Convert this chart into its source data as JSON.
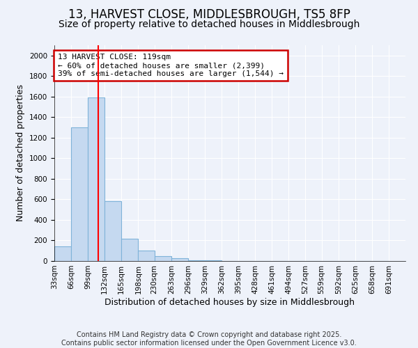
{
  "title": "13, HARVEST CLOSE, MIDDLESBROUGH, TS5 8FP",
  "subtitle": "Size of property relative to detached houses in Middlesbrough",
  "xlabel": "Distribution of detached houses by size in Middlesbrough",
  "ylabel": "Number of detached properties",
  "bin_labels": [
    "33sqm",
    "66sqm",
    "99sqm",
    "132sqm",
    "165sqm",
    "198sqm",
    "230sqm",
    "263sqm",
    "296sqm",
    "329sqm",
    "362sqm",
    "395sqm",
    "428sqm",
    "461sqm",
    "494sqm",
    "527sqm",
    "559sqm",
    "592sqm",
    "625sqm",
    "658sqm",
    "691sqm"
  ],
  "bin_left_edges": [
    33,
    66,
    99,
    132,
    165,
    198,
    230,
    263,
    296,
    329,
    362,
    395,
    428,
    461,
    494,
    527,
    559,
    592,
    625,
    658,
    691
  ],
  "bin_width": 33,
  "bar_heights": [
    140,
    1300,
    1590,
    580,
    215,
    100,
    50,
    25,
    10,
    5,
    2,
    1,
    1,
    0,
    0,
    0,
    0,
    0,
    0,
    0
  ],
  "bar_color": "#c5d9f0",
  "bar_edge_color": "#7fb3d9",
  "red_line_x": 119,
  "annotation_text": "13 HARVEST CLOSE: 119sqm\n← 60% of detached houses are smaller (2,399)\n39% of semi-detached houses are larger (1,544) →",
  "annotation_box_facecolor": "#ffffff",
  "annotation_box_edgecolor": "#cc0000",
  "ylim_max": 2100,
  "yticks": [
    0,
    200,
    400,
    600,
    800,
    1000,
    1200,
    1400,
    1600,
    1800,
    2000
  ],
  "footer_line1": "Contains HM Land Registry data © Crown copyright and database right 2025.",
  "footer_line2": "Contains public sector information licensed under the Open Government Licence v3.0.",
  "bg_color": "#eef2fa",
  "grid_color": "#ffffff",
  "title_fontsize": 12,
  "subtitle_fontsize": 10,
  "tick_fontsize": 7.5,
  "ylabel_fontsize": 9,
  "xlabel_fontsize": 9,
  "footer_fontsize": 7,
  "annotation_fontsize": 8
}
